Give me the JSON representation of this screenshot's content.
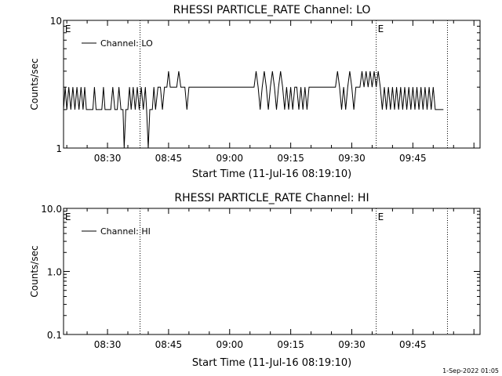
{
  "footer": {
    "timestamp": "1-Sep-2022 01:05"
  },
  "chart_data": [
    {
      "type": "line",
      "title": "RHESSI PARTICLE_RATE Channel: LO",
      "xlabel": "Start Time (11-Jul-16 08:19:10)",
      "ylabel": "Counts/sec",
      "yscale": "log",
      "ylim": [
        1,
        10
      ],
      "yticks": [
        "1",
        "10"
      ],
      "xlim_minutes_of_day": [
        499.2,
        601.5
      ],
      "xticks": [
        {
          "label": "08:30",
          "value": 510
        },
        {
          "label": "08:45",
          "value": 525
        },
        {
          "label": "09:00",
          "value": 540
        },
        {
          "label": "09:15",
          "value": 555
        },
        {
          "label": "09:30",
          "value": 570
        },
        {
          "label": "09:45",
          "value": 585
        }
      ],
      "legend": {
        "label": "Channel: LO",
        "position": "top-left"
      },
      "markers": [
        {
          "label": "E",
          "time": "08:19:10"
        },
        {
          "label": "E",
          "time": "09:36:00"
        }
      ],
      "vlines": [
        "08:38:00",
        "09:36:00",
        "09:53:30"
      ],
      "series": [
        {
          "name": "Channel: LO",
          "points": [
            [
              499.2,
              2
            ],
            [
              499.6,
              3
            ],
            [
              500.0,
              2
            ],
            [
              500.5,
              3
            ],
            [
              501.0,
              2
            ],
            [
              501.5,
              3
            ],
            [
              502.0,
              2
            ],
            [
              502.5,
              3
            ],
            [
              503.0,
              2
            ],
            [
              503.5,
              3
            ],
            [
              504.0,
              2
            ],
            [
              504.4,
              3
            ],
            [
              504.8,
              2
            ],
            [
              506.4,
              2
            ],
            [
              506.8,
              3
            ],
            [
              507.2,
              2
            ],
            [
              508.6,
              2
            ],
            [
              509.0,
              3
            ],
            [
              509.4,
              2
            ],
            [
              510.8,
              2
            ],
            [
              511.3,
              3
            ],
            [
              511.8,
              2
            ],
            [
              512.4,
              2
            ],
            [
              512.8,
              3
            ],
            [
              513.3,
              2
            ],
            [
              513.8,
              2
            ],
            [
              514.1,
              1
            ],
            [
              514.5,
              2
            ],
            [
              515.0,
              2
            ],
            [
              515.4,
              3
            ],
            [
              515.8,
              2
            ],
            [
              516.3,
              3
            ],
            [
              516.8,
              2
            ],
            [
              517.3,
              3
            ],
            [
              517.8,
              2
            ],
            [
              518.3,
              3
            ],
            [
              518.8,
              2
            ],
            [
              519.3,
              3
            ],
            [
              519.6,
              2
            ],
            [
              520.0,
              1
            ],
            [
              520.4,
              2
            ],
            [
              521.0,
              2
            ],
            [
              521.4,
              3
            ],
            [
              521.8,
              2
            ],
            [
              522.4,
              3
            ],
            [
              523.0,
              3
            ],
            [
              523.5,
              2
            ],
            [
              524.0,
              3
            ],
            [
              524.6,
              3
            ],
            [
              525.0,
              4
            ],
            [
              525.4,
              3
            ],
            [
              526.0,
              3
            ],
            [
              526.5,
              3
            ],
            [
              527.0,
              3
            ],
            [
              527.5,
              4
            ],
            [
              528.0,
              3
            ],
            [
              529.0,
              3
            ],
            [
              529.5,
              2
            ],
            [
              530.0,
              3
            ],
            [
              531.0,
              3
            ],
            [
              540.0,
              3
            ],
            [
              545.0,
              3
            ],
            [
              546.0,
              3
            ],
            [
              546.5,
              4
            ],
            [
              547.0,
              3
            ],
            [
              547.5,
              2
            ],
            [
              548.0,
              3
            ],
            [
              548.5,
              4
            ],
            [
              549.0,
              3
            ],
            [
              549.5,
              2
            ],
            [
              550.0,
              3
            ],
            [
              550.5,
              4
            ],
            [
              551.0,
              3
            ],
            [
              551.5,
              2
            ],
            [
              552.0,
              3
            ],
            [
              552.5,
              4
            ],
            [
              553.0,
              3
            ],
            [
              553.5,
              2
            ],
            [
              554.0,
              3
            ],
            [
              554.5,
              2
            ],
            [
              555.0,
              3
            ],
            [
              555.5,
              2
            ],
            [
              556.0,
              3
            ],
            [
              556.5,
              3
            ],
            [
              557.0,
              2
            ],
            [
              557.5,
              3
            ],
            [
              558.0,
              2
            ],
            [
              558.5,
              3
            ],
            [
              559.0,
              2
            ],
            [
              559.5,
              3
            ],
            [
              560.0,
              3
            ],
            [
              566.0,
              3
            ],
            [
              566.5,
              4
            ],
            [
              567.0,
              3
            ],
            [
              567.5,
              2
            ],
            [
              568.0,
              3
            ],
            [
              568.5,
              2
            ],
            [
              569.0,
              3
            ],
            [
              569.5,
              4
            ],
            [
              570.0,
              3
            ],
            [
              570.5,
              2
            ],
            [
              571.0,
              3
            ],
            [
              572.0,
              3
            ],
            [
              572.5,
              4
            ],
            [
              573.0,
              3
            ],
            [
              573.5,
              4
            ],
            [
              574.0,
              3
            ],
            [
              574.5,
              4
            ],
            [
              575.0,
              3
            ],
            [
              575.5,
              4
            ],
            [
              576.0,
              3
            ],
            [
              576.5,
              4
            ],
            [
              577.0,
              3
            ],
            [
              577.5,
              2
            ],
            [
              578.0,
              3
            ],
            [
              578.5,
              2
            ],
            [
              579.0,
              3
            ],
            [
              579.5,
              2
            ],
            [
              580.0,
              3
            ],
            [
              580.5,
              2
            ],
            [
              581.0,
              3
            ],
            [
              581.5,
              2
            ],
            [
              582.0,
              3
            ],
            [
              582.5,
              2
            ],
            [
              583.0,
              3
            ],
            [
              583.5,
              2
            ],
            [
              584.0,
              3
            ],
            [
              584.5,
              2
            ],
            [
              585.0,
              3
            ],
            [
              585.5,
              2
            ],
            [
              586.0,
              3
            ],
            [
              586.5,
              2
            ],
            [
              587.0,
              3
            ],
            [
              587.5,
              2
            ],
            [
              588.0,
              3
            ],
            [
              588.5,
              2
            ],
            [
              589.0,
              3
            ],
            [
              589.5,
              2
            ],
            [
              590.0,
              3
            ],
            [
              590.5,
              2
            ],
            [
              591.0,
              2
            ],
            [
              592.5,
              2
            ]
          ]
        }
      ]
    },
    {
      "type": "line",
      "title": "RHESSI PARTICLE_RATE Channel: HI",
      "xlabel": "Start Time (11-Jul-16 08:19:10)",
      "ylabel": "Counts/sec",
      "yscale": "log",
      "ylim": [
        0.1,
        10
      ],
      "yticks": [
        "0.1",
        "1.0",
        "10.0"
      ],
      "xlim_minutes_of_day": [
        499.2,
        601.5
      ],
      "xticks": [
        {
          "label": "08:30",
          "value": 510
        },
        {
          "label": "08:45",
          "value": 525
        },
        {
          "label": "09:00",
          "value": 540
        },
        {
          "label": "09:15",
          "value": 555
        },
        {
          "label": "09:30",
          "value": 570
        },
        {
          "label": "09:45",
          "value": 585
        }
      ],
      "legend": {
        "label": "Channel: HI",
        "position": "top-left"
      },
      "markers": [
        {
          "label": "E",
          "time": "08:19:10"
        },
        {
          "label": "E",
          "time": "09:36:00"
        }
      ],
      "vlines": [
        "08:38:00",
        "09:36:00",
        "09:53:30"
      ],
      "series": [
        {
          "name": "Channel: HI",
          "points": []
        }
      ]
    }
  ]
}
